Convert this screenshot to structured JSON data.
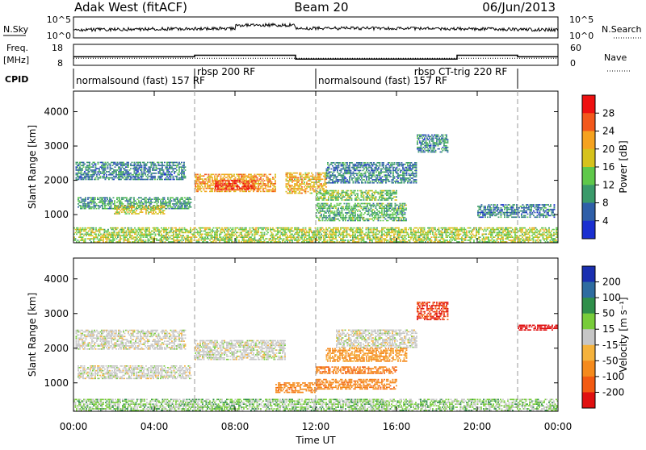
{
  "header": {
    "title_left": "Adak West (fitACF)",
    "title_center": "Beam 20",
    "title_right": "06/Jun/2013"
  },
  "noise_panel": {
    "left_label": "N.Sky",
    "right_label": "N.Search",
    "left_ticks": [
      "10^5",
      "10^0"
    ],
    "right_ticks": [
      "10^5",
      "10^0"
    ]
  },
  "freq_panel": {
    "left_label_line1": "Freq.",
    "left_label_line2": "[MHz]",
    "left_ticks": [
      "18",
      "8"
    ],
    "right_label": "Nave",
    "right_ticks": [
      "60",
      "0"
    ]
  },
  "cpid": {
    "label": "CPID",
    "segments": [
      {
        "start_h": 0,
        "text": "normalsound (fast) 157 RF",
        "row": 1
      },
      {
        "start_h": 6,
        "text": "rbsp 200 RF",
        "row": 0
      },
      {
        "start_h": 12,
        "text": "normalsound (fast) 157 RF",
        "row": 1
      },
      {
        "start_h": 16.75,
        "text": "rbsp CT-trig 220 RF",
        "row": 0
      }
    ],
    "boundaries_h": [
      6,
      12,
      22
    ]
  },
  "x_axis": {
    "label": "Time UT",
    "ticks": [
      "00:00",
      "04:00",
      "08:00",
      "12:00",
      "16:00",
      "20:00",
      "00:00"
    ]
  },
  "power_panel": {
    "ylabel": "Slant Range [km]",
    "y_ticks": [
      "1000",
      "2000",
      "3000",
      "4000"
    ],
    "colorbar_label": "Power [dB]",
    "colorbar_ticks": [
      "28",
      "24",
      "20",
      "16",
      "12",
      "8",
      "4"
    ],
    "colorbar_colors": [
      "#ee1111",
      "#f2581c",
      "#f5a21f",
      "#d6c21c",
      "#5fc84a",
      "#3a9a6a",
      "#2f5fa8",
      "#1a2fd0"
    ]
  },
  "velocity_panel": {
    "ylabel": "Slant Range [km]",
    "y_ticks": [
      "1000",
      "2000",
      "3000",
      "4000"
    ],
    "colorbar_label": "Velocity [m s⁻¹]",
    "colorbar_ticks": [
      "200",
      "100",
      "50",
      "15",
      "-15",
      "-50",
      "-100",
      "-200"
    ],
    "colorbar_colors": [
      "#1a2fb0",
      "#2e6ca0",
      "#2f8f4a",
      "#78cc3a",
      "#c6c6c6",
      "#f5b23c",
      "#f58a1c",
      "#f25a12",
      "#e01010"
    ]
  },
  "chart_data": {
    "type": "heatmap",
    "x_range_hours": [
      0,
      24
    ],
    "y_range_km": [
      180,
      4600
    ],
    "power_bands_dB": [
      {
        "t0": 0.2,
        "t1": 5.8,
        "r0": 1150,
        "r1": 1500,
        "power": 8
      },
      {
        "t0": 2.0,
        "t1": 4.5,
        "r0": 1000,
        "r1": 1250,
        "power": 16
      },
      {
        "t0": 0.1,
        "t1": 5.5,
        "r0": 2000,
        "r1": 2500,
        "power": 6
      },
      {
        "t0": 6.0,
        "t1": 10.0,
        "r0": 1650,
        "r1": 2150,
        "power": 20
      },
      {
        "t0": 7.0,
        "t1": 9.0,
        "r0": 1700,
        "r1": 2000,
        "power": 26
      },
      {
        "t0": 10.5,
        "t1": 12.5,
        "r0": 1600,
        "r1": 2200,
        "power": 18
      },
      {
        "t0": 12.0,
        "t1": 16.5,
        "r0": 800,
        "r1": 1300,
        "power": 10
      },
      {
        "t0": 12.0,
        "t1": 16.0,
        "r0": 1400,
        "r1": 1700,
        "power": 12
      },
      {
        "t0": 12.5,
        "t1": 17.0,
        "r0": 1900,
        "r1": 2500,
        "power": 6
      },
      {
        "t0": 17.0,
        "t1": 18.5,
        "r0": 2800,
        "r1": 3300,
        "power": 6
      },
      {
        "t0": 20.0,
        "t1": 23.8,
        "r0": 900,
        "r1": 1300,
        "power": 6
      },
      {
        "t0": 0.0,
        "t1": 24.0,
        "r0": 180,
        "r1": 600,
        "power": 14
      }
    ],
    "velocity_bands_ms": [
      {
        "t0": 0.2,
        "t1": 5.8,
        "r0": 1100,
        "r1": 1500,
        "velocity": 0
      },
      {
        "t0": 0.1,
        "t1": 5.5,
        "r0": 1950,
        "r1": 2500,
        "velocity": 0
      },
      {
        "t0": 6.0,
        "t1": 10.5,
        "r0": 1650,
        "r1": 2200,
        "velocity": 0
      },
      {
        "t0": 10.0,
        "t1": 12.0,
        "r0": 700,
        "r1": 1000,
        "velocity": -60
      },
      {
        "t0": 12.0,
        "t1": 16.0,
        "r0": 1250,
        "r1": 1450,
        "velocity": -70
      },
      {
        "t0": 12.0,
        "t1": 16.0,
        "r0": 800,
        "r1": 1100,
        "velocity": -60
      },
      {
        "t0": 12.5,
        "t1": 16.5,
        "r0": 1600,
        "r1": 2000,
        "velocity": -40
      },
      {
        "t0": 13.0,
        "t1": 17.0,
        "r0": 2000,
        "r1": 2500,
        "velocity": 0
      },
      {
        "t0": 17.0,
        "t1": 18.5,
        "r0": 2800,
        "r1": 3300,
        "velocity": -150
      },
      {
        "t0": 22.0,
        "t1": 24.0,
        "r0": 2500,
        "r1": 2650,
        "velocity": -200
      },
      {
        "t0": 0.0,
        "t1": 24.0,
        "r0": 180,
        "r1": 500,
        "velocity": 20
      }
    ],
    "freq_MHz": [
      {
        "t0": 0,
        "t1": 6,
        "v": 12
      },
      {
        "t0": 6,
        "t1": 11,
        "v": 13
      },
      {
        "t0": 11,
        "t1": 12,
        "v": 10.5
      },
      {
        "t0": 12,
        "t1": 19,
        "v": 10.5
      },
      {
        "t0": 19,
        "t1": 22,
        "v": 13
      },
      {
        "t0": 22,
        "t1": 24,
        "v": 12
      }
    ],
    "nave": [
      {
        "t0": 0,
        "t1": 12,
        "v": 18
      },
      {
        "t0": 12,
        "t1": 24,
        "v": 18
      }
    ]
  }
}
